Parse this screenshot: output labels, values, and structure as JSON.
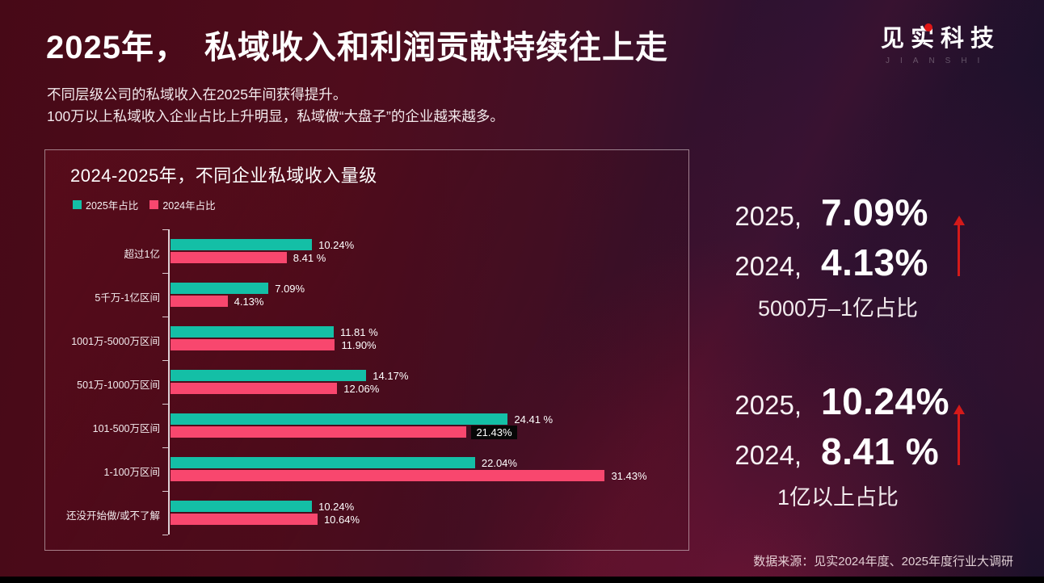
{
  "header": {
    "title": "2025年，　私域收入和利润贡献持续往上走",
    "subtitle_line1": "不同层级公司的私域收入在2025年间获得提升。",
    "subtitle_line2": "100万以上私域收入企业占比上升明显，私域做“大盘子”的企业越来越多。",
    "logo": {
      "text": "见实科技",
      "subtext": "JIANSHI"
    }
  },
  "chart_data": {
    "type": "bar",
    "orientation": "horizontal",
    "title": "2024-2025年，不同企业私域收入量级",
    "legend_position": "top-left",
    "grid": false,
    "xlim": [
      0,
      33
    ],
    "legend": [
      {
        "name": "2025年占比",
        "color": "#14bfa6"
      },
      {
        "name": "2024年占比",
        "color": "#f8476e"
      }
    ],
    "categories": [
      "超过1亿",
      "5千万-1亿区间",
      "1001万-5000万区间",
      "501万-1000万区间",
      "101-500万区间",
      "1-100万区间",
      "还没开始做/或不了解"
    ],
    "series": [
      {
        "name": "2025年占比",
        "values": [
          10.24,
          7.09,
          11.81,
          14.17,
          24.41,
          22.04,
          10.24
        ]
      },
      {
        "name": "2024年占比",
        "values": [
          8.41,
          4.13,
          11.9,
          12.06,
          21.43,
          31.43,
          10.64
        ]
      }
    ],
    "value_labels": [
      [
        "10.24%",
        "8.41 %"
      ],
      [
        "7.09%",
        "4.13%"
      ],
      [
        "11.81 %",
        "11.90%"
      ],
      [
        "14.17%",
        "12.06%"
      ],
      [
        "24.41 %",
        "21.43%"
      ],
      [
        "22.04%",
        "31.43%"
      ],
      [
        "10.24%",
        "10.64%"
      ]
    ],
    "boxed_labels": [
      [
        4,
        1
      ]
    ]
  },
  "stats": [
    {
      "rows": [
        {
          "year": "2025,",
          "value": "7.09%"
        },
        {
          "year": "2024,",
          "value": "4.13%"
        }
      ],
      "label": "5000万–1亿占比",
      "trend": "up"
    },
    {
      "rows": [
        {
          "year": "2025,",
          "value": "10.24%"
        },
        {
          "year": "2024,",
          "value": "8.41 %"
        }
      ],
      "label": "1亿以上占比",
      "trend": "up"
    }
  ],
  "footer": {
    "source": "数据来源：见实2024年度、2025年度行业大调研"
  },
  "colors": {
    "bar_2025_teal": "#14bfa6",
    "bar_2024_pink": "#f8476e",
    "arrow_red": "#d41a1a"
  }
}
